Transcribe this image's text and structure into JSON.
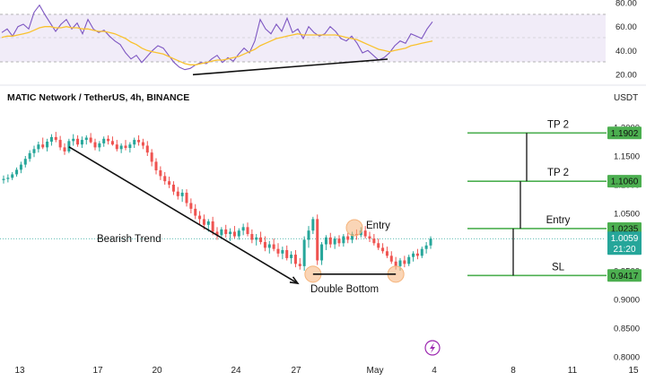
{
  "chart_data": [
    {
      "type": "line",
      "panel": "oscillator",
      "y_ticks": [
        "80.00",
        "60.00",
        "40.00",
        "20.00"
      ],
      "ylim": [
        20,
        80
      ],
      "band": [
        30,
        70
      ],
      "series": [
        {
          "values": [
            55,
            58,
            52,
            60,
            62,
            58,
            72,
            78,
            70,
            63,
            56,
            62,
            66,
            58,
            63,
            54,
            66,
            58,
            55,
            57,
            52,
            48,
            45,
            38,
            33,
            36,
            30,
            35,
            40,
            44,
            42,
            36,
            30,
            26,
            24,
            25,
            28,
            30,
            29,
            33,
            36,
            30,
            34,
            31,
            37,
            42,
            38,
            48,
            66,
            58,
            54,
            62,
            56,
            67,
            55,
            58,
            50,
            60,
            55,
            52,
            54,
            60,
            56,
            50,
            48,
            52,
            46,
            38,
            40,
            36,
            32,
            34,
            38,
            44,
            48,
            46,
            54,
            52,
            50,
            58,
            64
          ]
        },
        {
          "values": [
            51,
            52,
            52,
            53,
            54,
            55,
            57,
            59,
            60,
            60,
            59,
            59,
            60,
            59,
            59,
            58,
            58,
            57,
            56,
            56,
            55,
            54,
            52,
            50,
            47,
            45,
            42,
            40,
            39,
            38,
            37,
            35,
            33,
            31,
            29,
            28,
            28,
            29,
            30,
            31,
            32,
            32,
            33,
            34,
            35,
            37,
            39,
            41,
            44,
            46,
            48,
            50,
            51,
            52,
            53,
            54,
            53,
            53,
            53,
            53,
            53,
            53,
            53,
            52,
            51,
            50,
            49,
            47,
            45,
            43,
            41,
            40,
            39,
            40,
            41,
            42,
            44,
            45,
            46,
            47,
            48
          ]
        }
      ],
      "trendline": [
        [
          22.4,
          22
        ],
        [
          3.7,
          32
        ]
      ]
    },
    {
      "type": "candlestick",
      "title": "MATIC Network / TetherUS, 4h, BINANCE",
      "currency": "USDT",
      "x_tick_labels": [
        "13",
        "17",
        "20",
        "24",
        "27",
        "May",
        "4",
        "8",
        "11",
        "15"
      ],
      "y_tick_labels": [
        "1.2000",
        "1.1500",
        "1.1000",
        "1.0500",
        "1.0000",
        "0.9500",
        "0.9000",
        "0.8500",
        "0.8000"
      ],
      "ylim": [
        0.8,
        1.2
      ],
      "current_price": "1.0059",
      "countdown": "21:20",
      "ohlc": [
        [
          1.108,
          1.116,
          1.102,
          1.11
        ],
        [
          1.11,
          1.118,
          1.104,
          1.112
        ],
        [
          1.112,
          1.122,
          1.108,
          1.118
        ],
        [
          1.118,
          1.13,
          1.114,
          1.126
        ],
        [
          1.126,
          1.14,
          1.12,
          1.135
        ],
        [
          1.135,
          1.15,
          1.13,
          1.145
        ],
        [
          1.145,
          1.16,
          1.14,
          1.155
        ],
        [
          1.155,
          1.168,
          1.148,
          1.162
        ],
        [
          1.162,
          1.175,
          1.156,
          1.17
        ],
        [
          1.17,
          1.182,
          1.162,
          1.165
        ],
        [
          1.165,
          1.18,
          1.158,
          1.175
        ],
        [
          1.175,
          1.188,
          1.168,
          1.183
        ],
        [
          1.183,
          1.192,
          1.174,
          1.178
        ],
        [
          1.178,
          1.185,
          1.16,
          1.165
        ],
        [
          1.165,
          1.172,
          1.152,
          1.158
        ],
        [
          1.158,
          1.18,
          1.155,
          1.176
        ],
        [
          1.176,
          1.188,
          1.168,
          1.18
        ],
        [
          1.18,
          1.186,
          1.166,
          1.17
        ],
        [
          1.17,
          1.184,
          1.164,
          1.178
        ],
        [
          1.178,
          1.186,
          1.17,
          1.182
        ],
        [
          1.182,
          1.19,
          1.172,
          1.174
        ],
        [
          1.174,
          1.18,
          1.16,
          1.165
        ],
        [
          1.165,
          1.176,
          1.158,
          1.172
        ],
        [
          1.172,
          1.184,
          1.166,
          1.18
        ],
        [
          1.18,
          1.186,
          1.17,
          1.176
        ],
        [
          1.176,
          1.184,
          1.168,
          1.17
        ],
        [
          1.17,
          1.178,
          1.158,
          1.162
        ],
        [
          1.162,
          1.172,
          1.155,
          1.168
        ],
        [
          1.168,
          1.178,
          1.16,
          1.164
        ],
        [
          1.164,
          1.174,
          1.156,
          1.17
        ],
        [
          1.17,
          1.182,
          1.164,
          1.178
        ],
        [
          1.178,
          1.186,
          1.168,
          1.174
        ],
        [
          1.174,
          1.18,
          1.162,
          1.168
        ],
        [
          1.168,
          1.176,
          1.15,
          1.156
        ],
        [
          1.156,
          1.162,
          1.132,
          1.14
        ],
        [
          1.14,
          1.146,
          1.118,
          1.125
        ],
        [
          1.125,
          1.132,
          1.108,
          1.115
        ],
        [
          1.115,
          1.122,
          1.1,
          1.106
        ],
        [
          1.106,
          1.114,
          1.094,
          1.1
        ],
        [
          1.1,
          1.106,
          1.082,
          1.088
        ],
        [
          1.088,
          1.096,
          1.074,
          1.08
        ],
        [
          1.08,
          1.092,
          1.07,
          1.086
        ],
        [
          1.086,
          1.092,
          1.062,
          1.068
        ],
        [
          1.068,
          1.076,
          1.05,
          1.058
        ],
        [
          1.058,
          1.066,
          1.04,
          1.046
        ],
        [
          1.046,
          1.054,
          1.03,
          1.04
        ],
        [
          1.04,
          1.048,
          1.022,
          1.03
        ],
        [
          1.03,
          1.04,
          1.018,
          1.036
        ],
        [
          1.036,
          1.044,
          1.012,
          1.018
        ],
        [
          1.018,
          1.026,
          1.004,
          1.012
        ],
        [
          1.012,
          1.026,
          1.006,
          1.022
        ],
        [
          1.022,
          1.03,
          1.008,
          1.014
        ],
        [
          1.014,
          1.024,
          1.002,
          1.018
        ],
        [
          1.018,
          1.028,
          1.006,
          1.01
        ],
        [
          1.01,
          1.024,
          1.004,
          1.02
        ],
        [
          1.02,
          1.032,
          1.012,
          1.026
        ],
        [
          1.026,
          1.034,
          1.01,
          1.014
        ],
        [
          1.014,
          1.022,
          0.998,
          1.004
        ],
        [
          1.004,
          1.014,
          0.994,
          1.008
        ],
        [
          1.008,
          1.018,
          0.996,
          1.0
        ],
        [
          1.0,
          1.01,
          0.984,
          0.99
        ],
        [
          0.99,
          1.002,
          0.98,
          0.996
        ],
        [
          0.996,
          1.006,
          0.984,
          0.988
        ],
        [
          0.988,
          0.998,
          0.974,
          0.98
        ],
        [
          0.98,
          0.992,
          0.97,
          0.986
        ],
        [
          0.986,
          0.994,
          0.968,
          0.972
        ],
        [
          0.972,
          0.984,
          0.962,
          0.978
        ],
        [
          0.978,
          0.986,
          0.956,
          0.962
        ],
        [
          0.962,
          0.972,
          0.952,
          0.958
        ],
        [
          0.958,
          1.01,
          0.95,
          1.004
        ],
        [
          1.004,
          1.028,
          0.99,
          1.02
        ],
        [
          1.02,
          1.044,
          1.014,
          1.04
        ],
        [
          1.04,
          1.048,
          0.96,
          0.968
        ],
        [
          0.968,
          1.0,
          0.96,
          0.996
        ],
        [
          0.996,
          1.012,
          0.986,
          1.008
        ],
        [
          1.008,
          1.016,
          0.99,
          0.996
        ],
        [
          0.996,
          1.01,
          0.988,
          1.006
        ],
        [
          1.006,
          1.012,
          0.992,
          0.998
        ],
        [
          0.998,
          1.014,
          0.992,
          1.01
        ],
        [
          1.01,
          1.016,
          0.998,
          1.004
        ],
        [
          1.004,
          1.018,
          0.998,
          1.014
        ],
        [
          1.014,
          1.022,
          1.004,
          1.012
        ],
        [
          1.012,
          1.026,
          1.008,
          1.02
        ],
        [
          1.02,
          1.028,
          1.006,
          1.01
        ],
        [
          1.01,
          1.018,
          1.0,
          1.006
        ],
        [
          1.006,
          1.014,
          0.994,
          0.998
        ],
        [
          0.998,
          1.006,
          0.986,
          0.99
        ],
        [
          0.99,
          0.998,
          0.98,
          0.984
        ],
        [
          0.984,
          0.992,
          0.972,
          0.976
        ],
        [
          0.976,
          0.984,
          0.962,
          0.966
        ],
        [
          0.966,
          0.974,
          0.952,
          0.958
        ],
        [
          0.958,
          0.972,
          0.95,
          0.968
        ],
        [
          0.968,
          0.976,
          0.956,
          0.962
        ],
        [
          0.962,
          0.978,
          0.958,
          0.974
        ],
        [
          0.974,
          0.984,
          0.966,
          0.98
        ],
        [
          0.98,
          0.988,
          0.97,
          0.976
        ],
        [
          0.976,
          0.992,
          0.972,
          0.988
        ],
        [
          0.988,
          1.0,
          0.98,
          0.994
        ],
        [
          0.994,
          1.01,
          0.988,
          1.006
        ]
      ],
      "levels": [
        {
          "label": "TP 2",
          "price": 1.1902,
          "badge": "1.1902"
        },
        {
          "label": "TP 2",
          "price": 1.106,
          "badge": "1.1060"
        },
        {
          "label": "Entry",
          "price": 1.0235,
          "badge": "1.0235"
        },
        {
          "label": "SL",
          "price": 0.9417,
          "badge": "0.9417"
        }
      ],
      "annotations": {
        "bearish_trend": "Bearish Trend",
        "double_bottom": "Double Bottom",
        "entry": "Entry"
      },
      "colors": {
        "up": "#26a69a",
        "down": "#ef5350",
        "level": "#4caf50",
        "oscillator": "#7e57c2",
        "oscillator_ma": "#f9c22e",
        "highlight": "#f5b37a"
      }
    }
  ]
}
